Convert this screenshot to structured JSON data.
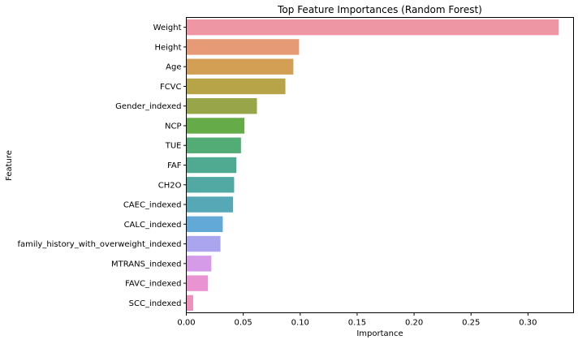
{
  "chart_data": {
    "type": "bar",
    "orientation": "horizontal",
    "title": "Top Feature Importances (Random Forest)",
    "xlabel": "Importance",
    "ylabel": "Feature",
    "xlim": [
      0,
      0.34
    ],
    "xticks": [
      "0.00",
      "0.05",
      "0.10",
      "0.15",
      "0.20",
      "0.25",
      "0.30"
    ],
    "xtick_values": [
      0,
      0.05,
      0.1,
      0.15,
      0.2,
      0.25,
      0.3
    ],
    "grid": false,
    "categories": [
      "Weight",
      "Height",
      "Age",
      "FCVC",
      "Gender_indexed",
      "NCP",
      "TUE",
      "FAF",
      "CH2O",
      "CAEC_indexed",
      "CALC_indexed",
      "family_history_with_overweight_indexed",
      "MTRANS_indexed",
      "FAVC_indexed",
      "SCC_indexed"
    ],
    "values": [
      0.327,
      0.099,
      0.094,
      0.087,
      0.062,
      0.051,
      0.048,
      0.044,
      0.042,
      0.041,
      0.032,
      0.03,
      0.022,
      0.019,
      0.006
    ],
    "colors": [
      "#ee96a3",
      "#e79a76",
      "#d29f54",
      "#b7a448",
      "#98a548",
      "#65ac49",
      "#52ac75",
      "#4faa91",
      "#52a9a3",
      "#56a8b6",
      "#62a9d7",
      "#aaa5ee",
      "#d59ae8",
      "#ea93d3",
      "#ee90bc"
    ]
  }
}
